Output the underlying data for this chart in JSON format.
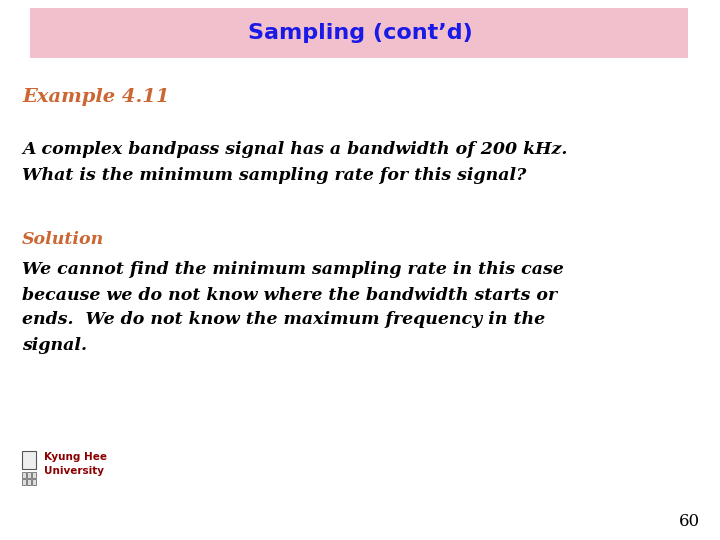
{
  "title": "Sampling (cont’d)",
  "title_color": "#1A1AE6",
  "title_bg_color": "#F2C0CC",
  "example_label": "Example 4.11",
  "example_color": "#CC6633",
  "question_line1": "A complex bandpass signal has a bandwidth of 200 kHz.",
  "question_line2": "What is the minimum sampling rate for this signal?",
  "solution_label": "Solution",
  "solution_label_color": "#CC6633",
  "solution_line1": "We cannot find the minimum sampling rate in this case",
  "solution_line2": "because we do not know where the bandwidth starts or",
  "solution_line3": "ends.  We do not know the maximum frequency in the",
  "solution_line4": "signal.",
  "body_text_color": "#000000",
  "footer_line1": "Kyung Hee",
  "footer_line2": "University",
  "footer_color": "#8B0000",
  "page_number": "60",
  "bg_color": "#FFFFFF"
}
